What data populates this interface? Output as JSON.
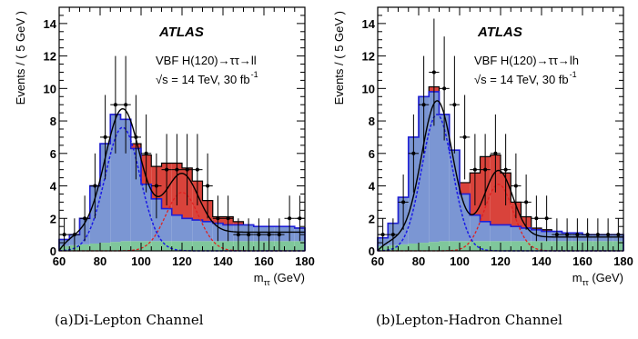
{
  "chart_data": [
    {
      "type": "bar",
      "histogram": true,
      "caption": "(a)Di-Lepton Channel",
      "atlas_label": "ATLAS",
      "process_label": "VBF H(120)→ττ→ll",
      "energy_label": "√s = 14 TeV,   30 fb",
      "lumi_exponent": "-1",
      "ylabel": "Events / ( 5 GeV )",
      "xlabel": "m",
      "xlabel_subscript": "ττ",
      "xlabel_unit": "(GeV)",
      "xlim": [
        60,
        180
      ],
      "ylim": [
        0,
        15
      ],
      "xticks": [
        60,
        80,
        100,
        120,
        140,
        160,
        180
      ],
      "yticks": [
        0,
        2,
        4,
        6,
        8,
        10,
        12,
        14
      ],
      "bin_width": 5,
      "bin_edges": [
        60,
        65,
        70,
        75,
        80,
        85,
        90,
        95,
        100,
        105,
        110,
        115,
        120,
        125,
        130,
        135,
        140,
        145,
        150,
        155,
        160,
        165,
        170,
        175,
        180
      ],
      "colors": {
        "z": "#7b96d3",
        "signal": "#d9433b",
        "bkg": "#7fc79b",
        "edge": "#1f1fd6",
        "fit": "#000000",
        "z_fit": "#1a1ae6",
        "signal_fit": "#e02020"
      },
      "stack": {
        "bkg": [
          0.3,
          0.35,
          0.4,
          0.45,
          0.5,
          0.55,
          0.6,
          0.6,
          0.6,
          0.6,
          0.6,
          0.6,
          0.6,
          0.6,
          0.6,
          0.6,
          0.6,
          0.6,
          0.6,
          0.6,
          0.6,
          0.6,
          0.6,
          0.6
        ],
        "z_total": [
          0.7,
          1.0,
          2.0,
          4.0,
          6.6,
          8.4,
          8.1,
          6.3,
          4.1,
          3.2,
          2.6,
          2.2,
          2.0,
          1.9,
          1.8,
          1.7,
          1.6,
          1.6,
          1.6,
          1.5,
          1.5,
          1.5,
          1.5,
          1.4
        ],
        "total": [
          0.7,
          1.0,
          2.0,
          4.0,
          6.6,
          8.4,
          8.1,
          6.6,
          5.9,
          5.2,
          5.4,
          5.4,
          5.1,
          4.3,
          3.1,
          2.1,
          2.1,
          1.8,
          1.6,
          1.5,
          1.5,
          1.5,
          1.5,
          1.4
        ]
      },
      "data_points": {
        "x": [
          62.5,
          67.5,
          72.5,
          77.5,
          82.5,
          87.5,
          92.5,
          97.5,
          102.5,
          107.5,
          112.5,
          117.5,
          122.5,
          127.5,
          132.5,
          137.5,
          142.5,
          147.5,
          152.5,
          157.5,
          162.5,
          167.5,
          172.5,
          177.5
        ],
        "y": [
          1.0,
          1.0,
          2.0,
          4.0,
          7.0,
          9.0,
          9.0,
          7.0,
          6.0,
          4.0,
          5.0,
          5.0,
          5.0,
          5.0,
          4.0,
          2.0,
          2.0,
          1.0,
          1.0,
          1.0,
          1.0,
          1.0,
          2.0,
          2.0
        ],
        "err": [
          1.0,
          1.0,
          1.4,
          2.0,
          2.6,
          3.0,
          3.0,
          2.6,
          2.4,
          2.0,
          2.2,
          2.2,
          2.2,
          2.2,
          2.0,
          1.4,
          1.4,
          1.0,
          1.0,
          1.0,
          1.0,
          1.0,
          1.4,
          1.4
        ]
      },
      "fit": {
        "z_mean": 91,
        "z_sigma": 8.5,
        "z_amp": 7.6,
        "signal_mean": 120,
        "signal_sigma": 8,
        "signal_amp": 3.6,
        "bkg_level": 1.15
      }
    },
    {
      "type": "bar",
      "histogram": true,
      "caption": "(b)Lepton-Hadron Channel",
      "atlas_label": "ATLAS",
      "process_label": "VBF H(120)→ττ→lh",
      "energy_label": "√s = 14 TeV,   30 fb",
      "lumi_exponent": "-1",
      "ylabel": "Events / ( 5 GeV )",
      "xlabel": "m",
      "xlabel_subscript": "ττ",
      "xlabel_unit": "(GeV)",
      "xlim": [
        60,
        180
      ],
      "ylim": [
        0,
        15
      ],
      "xticks": [
        60,
        80,
        100,
        120,
        140,
        160,
        180
      ],
      "yticks": [
        0,
        2,
        4,
        6,
        8,
        10,
        12,
        14
      ],
      "bin_width": 5,
      "bin_edges": [
        60,
        65,
        70,
        75,
        80,
        85,
        90,
        95,
        100,
        105,
        110,
        115,
        120,
        125,
        130,
        135,
        140,
        145,
        150,
        155,
        160,
        165,
        170,
        175,
        180
      ],
      "colors": {
        "z": "#7b96d3",
        "signal": "#d9433b",
        "bkg": "#7fc79b",
        "edge": "#1f1fd6",
        "fit": "#000000",
        "z_fit": "#1a1ae6",
        "signal_fit": "#e02020"
      },
      "stack": {
        "bkg": [
          0.3,
          0.35,
          0.4,
          0.45,
          0.5,
          0.55,
          0.6,
          0.6,
          0.6,
          0.6,
          0.6,
          0.6,
          0.6,
          0.6,
          0.6,
          0.6,
          0.6,
          0.6,
          0.6,
          0.6,
          0.6,
          0.6,
          0.6,
          0.6
        ],
        "z_total": [
          0.8,
          1.7,
          3.3,
          7.0,
          9.5,
          9.8,
          8.4,
          6.2,
          3.5,
          2.2,
          1.8,
          1.6,
          1.6,
          1.5,
          1.4,
          1.3,
          1.2,
          1.2,
          1.1,
          1.1,
          1.0,
          1.0,
          1.0,
          1.0
        ],
        "total": [
          0.8,
          1.7,
          3.3,
          7.0,
          9.5,
          10.1,
          8.4,
          6.2,
          4.2,
          4.8,
          5.8,
          5.9,
          4.8,
          3.0,
          2.1,
          1.4,
          1.3,
          1.2,
          1.1,
          1.1,
          1.0,
          1.0,
          1.0,
          1.0
        ]
      },
      "data_points": {
        "x": [
          62.5,
          67.5,
          72.5,
          77.5,
          82.5,
          87.5,
          92.5,
          97.5,
          102.5,
          107.5,
          112.5,
          117.5,
          122.5,
          127.5,
          132.5,
          137.5,
          142.5,
          147.5,
          152.5,
          157.5,
          162.5,
          167.5,
          172.5,
          177.5
        ],
        "y": [
          1.0,
          1.0,
          3.0,
          6.0,
          9.0,
          11.0,
          10.0,
          9.0,
          7.0,
          5.0,
          5.0,
          6.0,
          5.0,
          4.0,
          3.0,
          2.0,
          2.0,
          1.0,
          1.0,
          1.0,
          1.0,
          1.0,
          1.0,
          1.0
        ],
        "err": [
          1.0,
          1.0,
          1.7,
          2.4,
          3.0,
          3.3,
          3.2,
          3.0,
          2.6,
          2.2,
          2.2,
          2.4,
          2.2,
          2.0,
          1.7,
          1.4,
          1.4,
          1.0,
          1.0,
          1.0,
          1.0,
          1.0,
          1.0,
          1.0
        ]
      },
      "fit": {
        "z_mean": 89,
        "z_sigma": 7.5,
        "z_amp": 8.4,
        "signal_mean": 119,
        "signal_sigma": 7,
        "signal_amp": 4.1,
        "bkg_level": 0.85
      }
    }
  ]
}
